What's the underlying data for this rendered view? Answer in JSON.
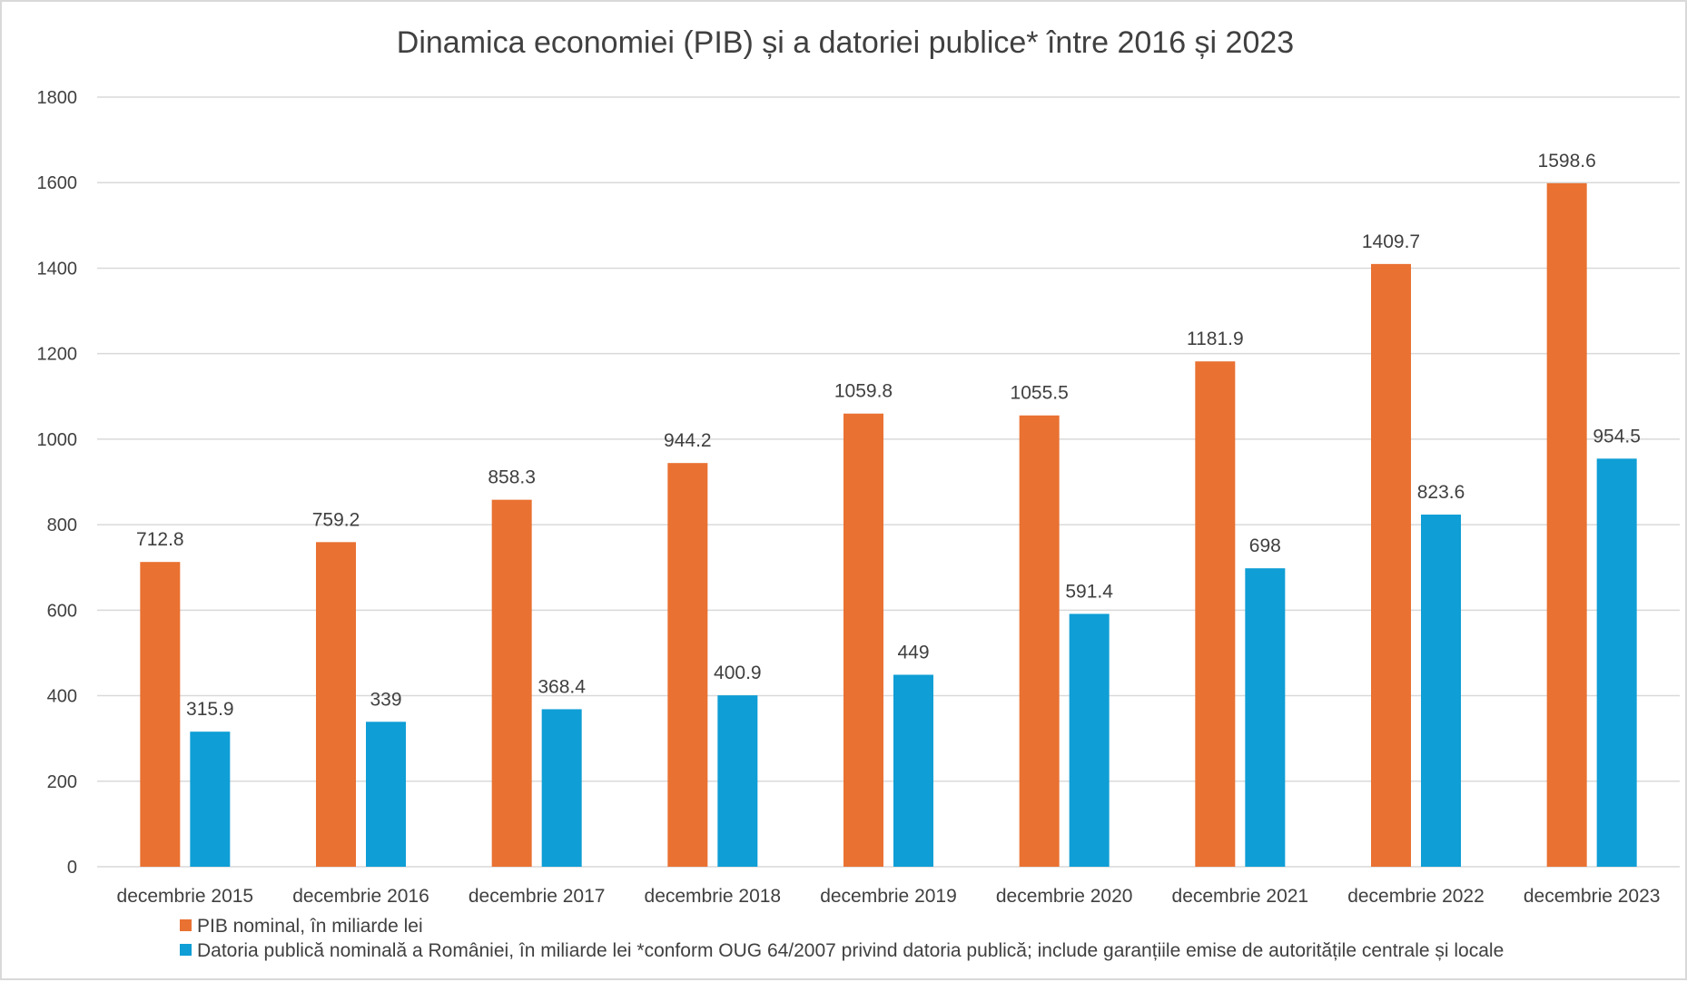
{
  "chart_data": {
    "type": "bar",
    "title": "Dinamica economiei (PIB) și a datoriei publice* între 2016 și 2023",
    "xlabel": "",
    "ylabel": "",
    "ylim": [
      0,
      1800
    ],
    "yticks": [
      0,
      200,
      400,
      600,
      800,
      1000,
      1200,
      1400,
      1600,
      1800
    ],
    "grid": true,
    "legend_position": "bottom",
    "categories": [
      "decembrie 2015",
      "decembrie 2016",
      "decembrie 2017",
      "decembrie 2018",
      "decembrie 2019",
      "decembrie 2020",
      "decembrie 2021",
      "decembrie 2022",
      "decembrie 2023"
    ],
    "series": [
      {
        "name": "PIB nominal, în miliarde lei",
        "color": "#E97132",
        "values": [
          712.8,
          759.2,
          858.3,
          944.2,
          1059.8,
          1055.5,
          1181.9,
          1409.7,
          1598.6
        ]
      },
      {
        "name": "Datoria publică nominală a României, în miliarde lei *conform OUG 64/2007 privind datoria publică; include garanțiile emise de autoritățile centrale și locale",
        "color": "#0F9ED5",
        "values": [
          315.9,
          339,
          368.4,
          400.9,
          449,
          591.4,
          698,
          823.6,
          954.5
        ]
      }
    ]
  }
}
